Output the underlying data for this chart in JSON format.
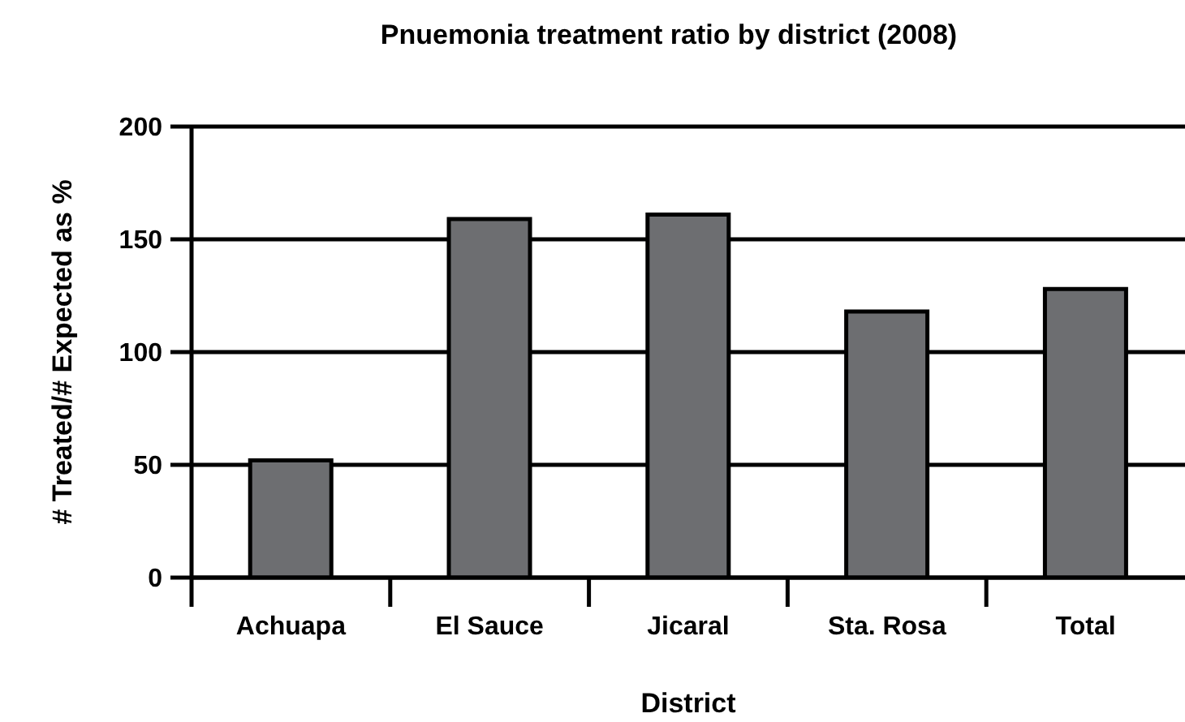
{
  "chart_data": {
    "type": "bar",
    "title": "Pnuemonia treatment ratio by district (2008)",
    "xlabel": "District",
    "ylabel": "# Treated/# Expected as %",
    "categories": [
      "Achuapa",
      "El Sauce",
      "Jicaral",
      "Sta. Rosa",
      "Total"
    ],
    "values": [
      52,
      159,
      161,
      118,
      128
    ],
    "color": "#6d6e71",
    "ylim": [
      0,
      200
    ],
    "yticks": [
      0,
      50,
      100,
      150,
      200
    ],
    "grid": "y"
  }
}
